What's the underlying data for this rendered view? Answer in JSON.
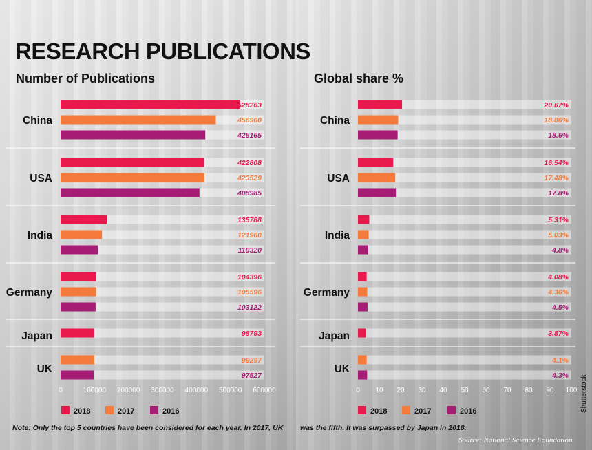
{
  "title": "RESEARCH PUBLICATIONS",
  "note_part1": "Note: Only the top 5 countries have been considered for each year. In 2017, UK",
  "note_part2": "was the fifth. It was surpassed by Japan in 2018.",
  "source": "Source: National Science Foundation",
  "credit": "Shutterstock",
  "colors": {
    "2018": "#e8194d",
    "2017": "#f47b3c",
    "2016": "#a51d74"
  },
  "chart_data": [
    {
      "type": "bar",
      "orientation": "horizontal",
      "title": "Number of Publications",
      "xlim": [
        0,
        600000
      ],
      "xticks": [
        "0",
        "100000",
        "200000",
        "300000",
        "400000",
        "500000",
        "600000"
      ],
      "legend": [
        "2018",
        "2017",
        "2016"
      ],
      "groups": [
        {
          "category": "China",
          "bars": [
            {
              "year": "2018",
              "value": 528263,
              "label": "528263"
            },
            {
              "year": "2017",
              "value": 456960,
              "label": "456960"
            },
            {
              "year": "2016",
              "value": 426165,
              "label": "426165"
            }
          ]
        },
        {
          "category": "USA",
          "bars": [
            {
              "year": "2018",
              "value": 422808,
              "label": "422808"
            },
            {
              "year": "2017",
              "value": 423529,
              "label": "423529"
            },
            {
              "year": "2016",
              "value": 408985,
              "label": "408985"
            }
          ]
        },
        {
          "category": "India",
          "bars": [
            {
              "year": "2018",
              "value": 135788,
              "label": "135788"
            },
            {
              "year": "2017",
              "value": 121960,
              "label": "121960"
            },
            {
              "year": "2016",
              "value": 110320,
              "label": "110320"
            }
          ]
        },
        {
          "category": "Germany",
          "bars": [
            {
              "year": "2018",
              "value": 104396,
              "label": "104396"
            },
            {
              "year": "2017",
              "value": 105596,
              "label": "105596"
            },
            {
              "year": "2016",
              "value": 103122,
              "label": "103122"
            }
          ]
        },
        {
          "category": "Japan",
          "bars": [
            {
              "year": "2018",
              "value": 98793,
              "label": "98793"
            }
          ]
        },
        {
          "category": "UK",
          "bars": [
            {
              "year": "2017",
              "value": 99297,
              "label": "99297"
            },
            {
              "year": "2016",
              "value": 97527,
              "label": "97527"
            }
          ]
        }
      ]
    },
    {
      "type": "bar",
      "orientation": "horizontal",
      "title": "Global share %",
      "xlim": [
        0,
        100
      ],
      "xticks": [
        "0",
        "10",
        "20",
        "30",
        "40",
        "50",
        "60",
        "70",
        "80",
        "90",
        "100"
      ],
      "legend": [
        "2018",
        "2017",
        "2016"
      ],
      "groups": [
        {
          "category": "China",
          "bars": [
            {
              "year": "2018",
              "value": 20.67,
              "label": "20.67%"
            },
            {
              "year": "2017",
              "value": 18.86,
              "label": "18.86%"
            },
            {
              "year": "2016",
              "value": 18.6,
              "label": "18.6%"
            }
          ]
        },
        {
          "category": "USA",
          "bars": [
            {
              "year": "2018",
              "value": 16.54,
              "label": "16.54%"
            },
            {
              "year": "2017",
              "value": 17.48,
              "label": "17.48%"
            },
            {
              "year": "2016",
              "value": 17.8,
              "label": "17.8%"
            }
          ]
        },
        {
          "category": "India",
          "bars": [
            {
              "year": "2018",
              "value": 5.31,
              "label": "5.31%"
            },
            {
              "year": "2017",
              "value": 5.03,
              "label": "5.03%"
            },
            {
              "year": "2016",
              "value": 4.8,
              "label": "4.8%"
            }
          ]
        },
        {
          "category": "Germany",
          "bars": [
            {
              "year": "2018",
              "value": 4.08,
              "label": "4.08%"
            },
            {
              "year": "2017",
              "value": 4.36,
              "label": "4.36%"
            },
            {
              "year": "2016",
              "value": 4.5,
              "label": "4.5%"
            }
          ]
        },
        {
          "category": "Japan",
          "bars": [
            {
              "year": "2018",
              "value": 3.87,
              "label": "3.87%"
            }
          ]
        },
        {
          "category": "UK",
          "bars": [
            {
              "year": "2017",
              "value": 4.1,
              "label": "4.1%"
            },
            {
              "year": "2016",
              "value": 4.3,
              "label": "4.3%"
            }
          ]
        }
      ]
    }
  ]
}
